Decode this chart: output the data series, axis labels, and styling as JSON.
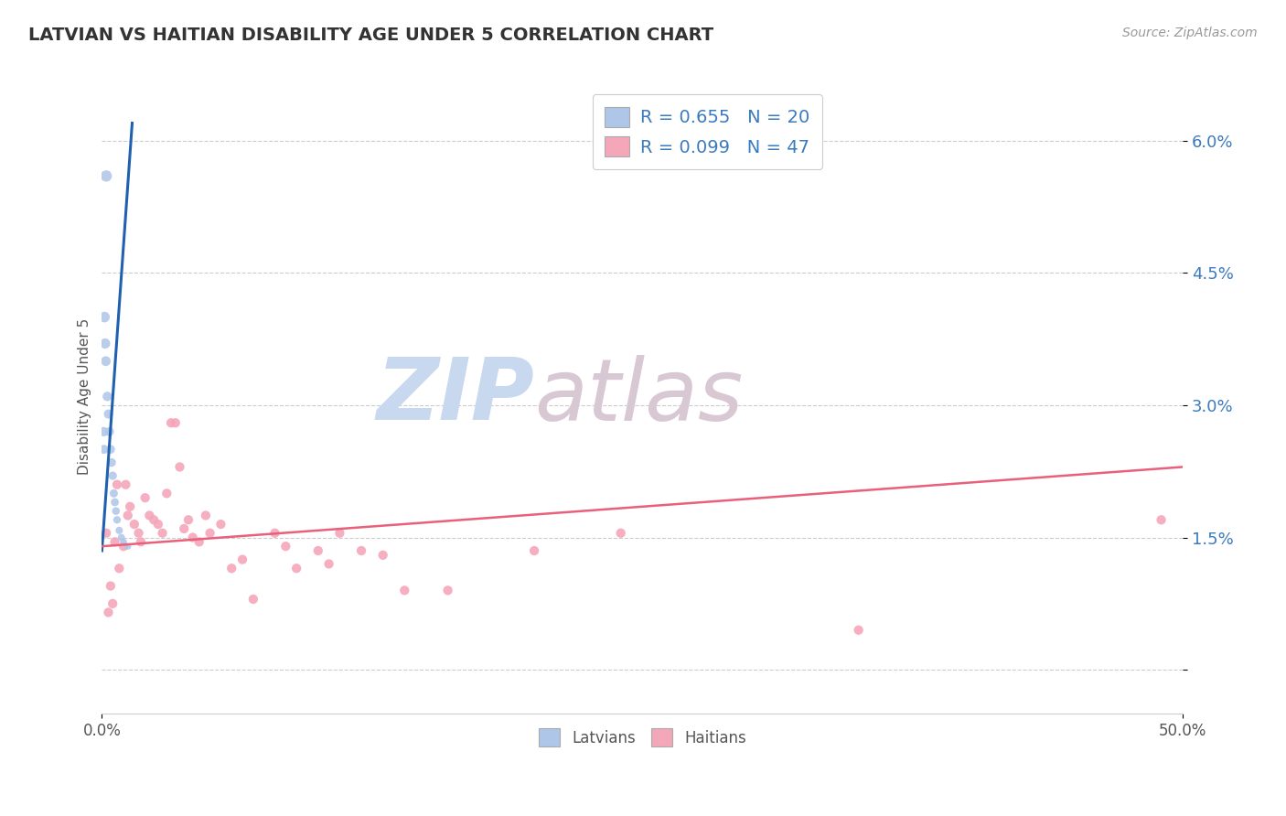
{
  "title": "LATVIAN VS HAITIAN DISABILITY AGE UNDER 5 CORRELATION CHART",
  "source": "Source: ZipAtlas.com",
  "ylabel": "Disability Age Under 5",
  "xmin": 0.0,
  "xmax": 0.5,
  "ymin": -0.005,
  "ymax": 0.067,
  "yticks": [
    0.0,
    0.015,
    0.03,
    0.045,
    0.06
  ],
  "ytick_labels": [
    "",
    "1.5%",
    "3.0%",
    "4.5%",
    "6.0%"
  ],
  "latvian_R": 0.655,
  "latvian_N": 20,
  "haitian_R": 0.099,
  "haitian_N": 47,
  "latvian_color": "#aec6e8",
  "haitian_color": "#f4a7b9",
  "latvian_line_color": "#2060b0",
  "haitian_line_color": "#e8607a",
  "background_color": "#ffffff",
  "latvians_x": [
    0.0008,
    0.001,
    0.0012,
    0.0015,
    0.0018,
    0.002,
    0.0025,
    0.003,
    0.0035,
    0.004,
    0.0045,
    0.005,
    0.0055,
    0.006,
    0.0065,
    0.007,
    0.008,
    0.009,
    0.01,
    0.012
  ],
  "latvians_y": [
    0.027,
    0.025,
    0.04,
    0.037,
    0.035,
    0.056,
    0.031,
    0.029,
    0.027,
    0.025,
    0.0235,
    0.022,
    0.02,
    0.019,
    0.018,
    0.017,
    0.0158,
    0.015,
    0.0145,
    0.014
  ],
  "latvian_sizes": [
    55,
    50,
    70,
    65,
    60,
    80,
    55,
    52,
    50,
    48,
    46,
    44,
    42,
    40,
    38,
    36,
    34,
    32,
    30,
    28
  ],
  "haitians_x": [
    0.002,
    0.003,
    0.004,
    0.005,
    0.006,
    0.007,
    0.008,
    0.01,
    0.011,
    0.012,
    0.013,
    0.015,
    0.017,
    0.018,
    0.02,
    0.022,
    0.024,
    0.026,
    0.028,
    0.03,
    0.032,
    0.034,
    0.036,
    0.038,
    0.04,
    0.042,
    0.045,
    0.048,
    0.05,
    0.055,
    0.06,
    0.065,
    0.07,
    0.08,
    0.085,
    0.09,
    0.1,
    0.105,
    0.11,
    0.12,
    0.13,
    0.14,
    0.16,
    0.2,
    0.24,
    0.35,
    0.49
  ],
  "haitians_y": [
    0.0155,
    0.0065,
    0.0095,
    0.0075,
    0.0145,
    0.021,
    0.0115,
    0.014,
    0.021,
    0.0175,
    0.0185,
    0.0165,
    0.0155,
    0.0145,
    0.0195,
    0.0175,
    0.017,
    0.0165,
    0.0155,
    0.02,
    0.028,
    0.028,
    0.023,
    0.016,
    0.017,
    0.015,
    0.0145,
    0.0175,
    0.0155,
    0.0165,
    0.0115,
    0.0125,
    0.008,
    0.0155,
    0.014,
    0.0115,
    0.0135,
    0.012,
    0.0155,
    0.0135,
    0.013,
    0.009,
    0.009,
    0.0135,
    0.0155,
    0.0045,
    0.017
  ]
}
